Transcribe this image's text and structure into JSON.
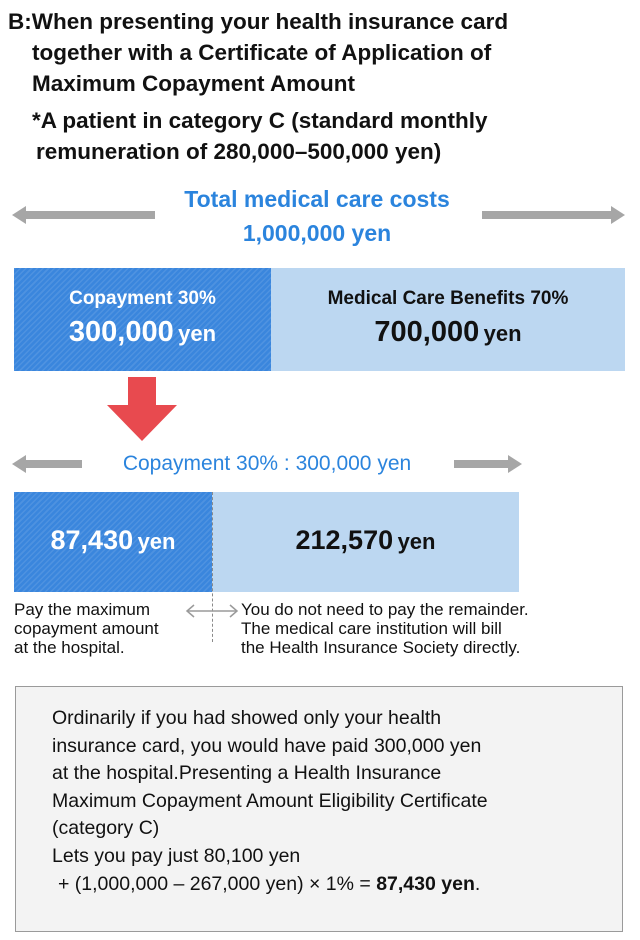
{
  "heading": {
    "line1": "B:When presenting your health insurance card",
    "line2": "together with a Certificate of Application of",
    "line3": "Maximum Copayment Amount",
    "line4": "*A patient in category C (standard monthly",
    "line5": "remuneration of 280,000–500,000 yen)"
  },
  "total": {
    "title": "Total medical care costs",
    "amount": "1,000,000 yen"
  },
  "split": {
    "copay_label": "Copayment 30%",
    "copay_amount": "300,000",
    "benefit_label": "Medical Care Benefits 70%",
    "benefit_amount": "700,000",
    "unit": "yen"
  },
  "copay_breakdown": {
    "title": "Copayment 30% : 300,000 yen",
    "pay_amount": "87,430",
    "remainder_amount": "212,570",
    "unit": "yen",
    "left_note": [
      "Pay the maximum",
      "copayment amount",
      "at the hospital."
    ],
    "right_note": [
      "You do not need to pay the remainder.",
      "The medical care institution will bill",
      "the Health Insurance Society directly."
    ]
  },
  "info": {
    "lines": [
      "Ordinarily if you had showed only your health",
      "insurance card, you would have paid 300,000 yen",
      "at the hospital.Presenting a Health Insurance",
      "Maximum Copayment Amount Eligibility Certificate",
      "(category C)",
      "Lets you pay just 80,100 yen"
    ],
    "formula_prefix": "+ (1,000,000 – 267,000 yen) × 1% = ",
    "formula_result": "87,430 yen",
    "formula_suffix": "."
  },
  "colors": {
    "accent_blue": "#2b84dd",
    "copay_blue": "#3a86dd",
    "light_blue": "#bcd7f1",
    "arrow_gray": "#a6a6a6",
    "down_arrow_red": "#e84a4f"
  },
  "icons": [
    "left-arrow-icon",
    "right-arrow-icon",
    "down-arrow-icon",
    "double-arrow-icon"
  ]
}
